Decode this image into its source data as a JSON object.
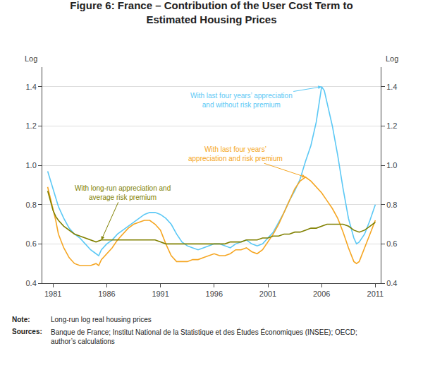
{
  "chart_data": {
    "type": "line",
    "title": "Figure 6: France – Contribution of the User Cost Term to\nEstimated Housing Prices",
    "y_label": "Log",
    "y2_label": "Log",
    "xlim": [
      1980.0,
      2011.5
    ],
    "xticks": [
      1981,
      1986,
      1991,
      1996,
      2001,
      2006,
      2011
    ],
    "ylim": [
      0.4,
      1.5
    ],
    "yticks": [
      0.4,
      0.6,
      0.8,
      {
        "value": 1.0,
        "label": "1.0"
      },
      1.2,
      1.4
    ],
    "y2lim": [
      0.4,
      1.5
    ],
    "y2ticks": [
      0.4,
      0.6,
      0.8,
      {
        "value": 1.0,
        "label": "1.0"
      },
      1.2,
      1.4
    ],
    "grid": true,
    "series": [
      {
        "name": "With last four years’ appreciation\nand without risk premium",
        "color": "#5BC8F5",
        "x": [
          1980.5,
          1981.0,
          1981.25,
          1981.5,
          1982.0,
          1982.5,
          1983.0,
          1983.5,
          1984.0,
          1984.5,
          1985.0,
          1985.25,
          1985.5,
          1986.0,
          1986.5,
          1987.0,
          1987.5,
          1988.0,
          1988.5,
          1989.0,
          1989.5,
          1990.0,
          1990.5,
          1991.0,
          1991.5,
          1992.0,
          1992.5,
          1993.0,
          1993.5,
          1994.0,
          1994.5,
          1995.0,
          1995.5,
          1996.0,
          1996.5,
          1997.0,
          1997.5,
          1998.0,
          1998.5,
          1999.0,
          1999.5,
          2000.0,
          2000.5,
          2001.0,
          2001.5,
          2002.0,
          2002.5,
          2003.0,
          2003.5,
          2004.0,
          2004.5,
          2005.0,
          2005.5,
          2006.0,
          2006.25,
          2006.5,
          2007.0,
          2007.5,
          2008.0,
          2008.5,
          2009.0,
          2009.25,
          2009.5,
          2010.0,
          2010.5,
          2011.0
        ],
        "values": [
          0.97,
          0.88,
          0.84,
          0.79,
          0.73,
          0.68,
          0.65,
          0.63,
          0.6,
          0.57,
          0.55,
          0.54,
          0.57,
          0.6,
          0.62,
          0.65,
          0.67,
          0.69,
          0.71,
          0.73,
          0.75,
          0.76,
          0.76,
          0.75,
          0.73,
          0.7,
          0.65,
          0.61,
          0.59,
          0.58,
          0.57,
          0.58,
          0.59,
          0.6,
          0.6,
          0.59,
          0.58,
          0.6,
          0.61,
          0.62,
          0.6,
          0.59,
          0.6,
          0.63,
          0.66,
          0.71,
          0.76,
          0.82,
          0.87,
          0.93,
          1.02,
          1.1,
          1.22,
          1.4,
          1.38,
          1.32,
          1.2,
          1.05,
          0.88,
          0.73,
          0.63,
          0.6,
          0.61,
          0.65,
          0.72,
          0.8
        ]
      },
      {
        "name": "With last four years’\nappreciation and risk premium",
        "color": "#F5A623",
        "x": [
          1980.5,
          1981.0,
          1981.25,
          1981.5,
          1982.0,
          1982.5,
          1983.0,
          1983.5,
          1984.0,
          1984.5,
          1985.0,
          1985.25,
          1985.5,
          1986.0,
          1986.5,
          1987.0,
          1987.5,
          1988.0,
          1988.5,
          1989.0,
          1989.5,
          1990.0,
          1990.5,
          1991.0,
          1991.5,
          1992.0,
          1992.5,
          1993.0,
          1993.5,
          1994.0,
          1994.5,
          1995.0,
          1995.5,
          1996.0,
          1996.5,
          1997.0,
          1997.5,
          1998.0,
          1998.5,
          1999.0,
          1999.5,
          2000.0,
          2000.5,
          2001.0,
          2001.5,
          2002.0,
          2002.5,
          2003.0,
          2003.5,
          2004.0,
          2004.5,
          2005.0,
          2005.5,
          2006.0,
          2006.5,
          2007.0,
          2007.5,
          2008.0,
          2008.5,
          2009.0,
          2009.25,
          2009.5,
          2010.0,
          2010.5,
          2011.0
        ],
        "values": [
          0.89,
          0.78,
          0.72,
          0.65,
          0.58,
          0.53,
          0.5,
          0.49,
          0.49,
          0.49,
          0.5,
          0.49,
          0.52,
          0.55,
          0.58,
          0.62,
          0.65,
          0.68,
          0.7,
          0.71,
          0.72,
          0.72,
          0.7,
          0.67,
          0.6,
          0.54,
          0.51,
          0.51,
          0.51,
          0.52,
          0.52,
          0.53,
          0.54,
          0.55,
          0.54,
          0.54,
          0.55,
          0.57,
          0.57,
          0.58,
          0.56,
          0.55,
          0.57,
          0.61,
          0.65,
          0.7,
          0.76,
          0.82,
          0.88,
          0.92,
          0.94,
          0.92,
          0.89,
          0.86,
          0.82,
          0.78,
          0.73,
          0.66,
          0.58,
          0.51,
          0.5,
          0.51,
          0.58,
          0.65,
          0.72
        ]
      },
      {
        "name": "With long-run appreciation and\naverage risk premium",
        "color": "#808000",
        "x": [
          1980.5,
          1981.0,
          1981.25,
          1981.5,
          1982.0,
          1982.5,
          1983.0,
          1983.5,
          1984.0,
          1984.5,
          1985.0,
          1985.5,
          1986.0,
          1986.5,
          1987.0,
          1987.5,
          1988.0,
          1988.5,
          1989.0,
          1989.5,
          1990.0,
          1990.5,
          1991.0,
          1991.5,
          1992.0,
          1992.5,
          1993.0,
          1993.5,
          1994.0,
          1994.5,
          1995.0,
          1995.5,
          1996.0,
          1996.5,
          1997.0,
          1997.5,
          1998.0,
          1998.5,
          1999.0,
          1999.5,
          2000.0,
          2000.5,
          2001.0,
          2001.5,
          2002.0,
          2002.5,
          2003.0,
          2003.5,
          2004.0,
          2004.5,
          2005.0,
          2005.5,
          2006.0,
          2006.5,
          2007.0,
          2007.5,
          2008.0,
          2008.5,
          2009.0,
          2009.5,
          2010.0,
          2010.5,
          2011.0
        ],
        "values": [
          0.87,
          0.77,
          0.74,
          0.72,
          0.69,
          0.67,
          0.65,
          0.64,
          0.63,
          0.62,
          0.61,
          0.62,
          0.62,
          0.62,
          0.62,
          0.62,
          0.62,
          0.62,
          0.62,
          0.62,
          0.62,
          0.62,
          0.61,
          0.6,
          0.6,
          0.6,
          0.6,
          0.6,
          0.6,
          0.6,
          0.6,
          0.6,
          0.6,
          0.6,
          0.6,
          0.61,
          0.61,
          0.61,
          0.62,
          0.62,
          0.62,
          0.63,
          0.63,
          0.64,
          0.64,
          0.65,
          0.65,
          0.66,
          0.66,
          0.67,
          0.68,
          0.68,
          0.69,
          0.7,
          0.7,
          0.7,
          0.7,
          0.69,
          0.67,
          0.66,
          0.67,
          0.69,
          0.71
        ]
      }
    ],
    "notes": [
      {
        "label": "Note:",
        "text": "Long-run log real housing prices"
      },
      {
        "label": "Sources:",
        "text": "Banque de France; Institut National de la Statistique et des Études Économiques (INSEE); OECD;\nauthor’s calculations"
      }
    ]
  }
}
